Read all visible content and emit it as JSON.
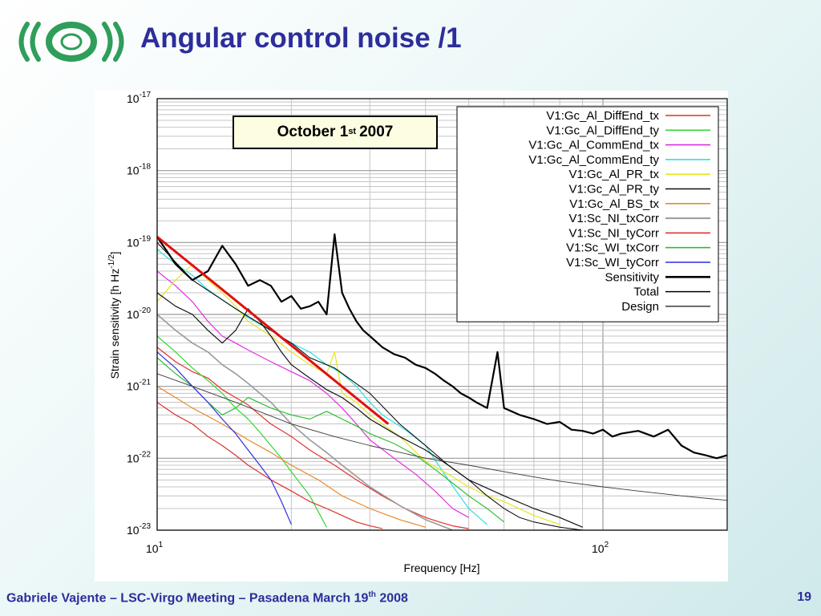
{
  "slide": {
    "title": "Angular control noise /1",
    "logo_icon": "virgo-logo-icon",
    "logo_color": "#2f9e5a",
    "title_color": "#2d2d9b",
    "footer": {
      "text": "Gabriele Vajente – LSC-Virgo Meeting – Pasadena March 19",
      "sup": "th",
      "year": "2008",
      "page": "19"
    }
  },
  "chart_data": {
    "type": "line",
    "xlabel": "Frequency [Hz]",
    "ylabel": "Strain sensitivity [h Hz",
    "ylabel_sup": "-1/2",
    "ylabel_close": "]",
    "xscale": "log",
    "yscale": "log",
    "xlim": [
      10,
      190
    ],
    "ylim": [
      1e-23,
      1e-17
    ],
    "grid": true,
    "legend_position": "top-right",
    "x_ticks": [
      {
        "value": 10,
        "base": "10",
        "exp": "1"
      },
      {
        "value": 100,
        "base": "10",
        "exp": "2"
      }
    ],
    "y_ticks": [
      {
        "value": 1e-17,
        "base": "10",
        "exp": "-17"
      },
      {
        "value": 1e-18,
        "base": "10",
        "exp": "-18"
      },
      {
        "value": 1e-19,
        "base": "10",
        "exp": "-19"
      },
      {
        "value": 1e-20,
        "base": "10",
        "exp": "-20"
      },
      {
        "value": 1e-21,
        "base": "10",
        "exp": "-21"
      },
      {
        "value": 1e-22,
        "base": "10",
        "exp": "-22"
      },
      {
        "value": 1e-23,
        "base": "10",
        "exp": "-23"
      }
    ],
    "annotation": {
      "text": "October 1",
      "sup": "st",
      "tail": "2007"
    },
    "series": [
      {
        "name": "V1:Gc_Al_DiffEnd_tx",
        "color": "#e0312f",
        "width": 1.2,
        "x": [
          10,
          11,
          12,
          13,
          14,
          15,
          16,
          17,
          18,
          20,
          22,
          25,
          28,
          32,
          36,
          40,
          43,
          46,
          50
        ],
        "y": [
          3.5e-21,
          2.2e-21,
          1.6e-21,
          1.3e-21,
          9e-22,
          7e-22,
          5.5e-22,
          4e-22,
          3e-22,
          2e-22,
          1.3e-22,
          8e-23,
          5e-23,
          3e-23,
          2e-23,
          1.5e-23,
          1.3e-23,
          1.15e-23,
          1.05e-23
        ]
      },
      {
        "name": "V1:Gc_Al_DiffEnd_ty",
        "color": "#33d633",
        "width": 1.2,
        "x": [
          10,
          11,
          12,
          13,
          14,
          15,
          16,
          17,
          18,
          19,
          20,
          22,
          24
        ],
        "y": [
          5e-21,
          3e-21,
          1.8e-21,
          1.2e-21,
          8e-22,
          5e-22,
          3.5e-22,
          2.3e-22,
          1.5e-22,
          1e-22,
          6.5e-23,
          3e-23,
          1.1e-23
        ]
      },
      {
        "name": "V1:Gc_Al_CommEnd_tx",
        "color": "#e02fe0",
        "width": 1.2,
        "x": [
          10,
          11,
          12,
          13,
          14,
          15,
          16,
          18,
          20,
          22,
          24,
          26,
          28,
          30,
          34,
          38,
          42,
          46,
          50
        ],
        "y": [
          4e-20,
          2.5e-20,
          1.5e-20,
          8e-21,
          5e-21,
          4e-21,
          3.2e-21,
          2.2e-21,
          1.6e-21,
          1.2e-21,
          8e-22,
          5e-22,
          3e-22,
          1.8e-22,
          1e-22,
          6e-23,
          3.5e-23,
          2e-23,
          1.5e-23
        ]
      },
      {
        "name": "V1:Gc_Al_CommEnd_ty",
        "color": "#2ee0e0",
        "width": 1.2,
        "x": [
          10,
          11,
          12,
          13,
          14,
          15,
          16,
          18,
          20,
          22,
          24,
          26,
          28,
          30,
          32,
          36,
          40,
          45,
          50,
          55
        ],
        "y": [
          8e-20,
          5e-20,
          3.5e-20,
          2.2e-20,
          1.6e-20,
          1.2e-20,
          9e-21,
          6e-21,
          4e-21,
          3e-21,
          2e-21,
          1.5e-21,
          1e-21,
          6e-22,
          4e-22,
          2.5e-22,
          1.5e-22,
          5e-23,
          2e-23,
          1.2e-23
        ]
      },
      {
        "name": "V1:Gc_Al_PR_tx",
        "color": "#e6e61f",
        "width": 1.2,
        "x": [
          10,
          11,
          12,
          13,
          14,
          15,
          16,
          18,
          20,
          22,
          24,
          25,
          26,
          28,
          30,
          35,
          40,
          45,
          50,
          55,
          60,
          70,
          80
        ],
        "y": [
          1.5e-20,
          3e-20,
          5e-20,
          3e-20,
          2e-20,
          1.3e-20,
          8e-21,
          5e-21,
          3e-21,
          2e-21,
          1.5e-21,
          3e-21,
          8e-22,
          6e-22,
          4e-22,
          2e-22,
          9e-23,
          6e-23,
          4e-23,
          3e-23,
          2.5e-23,
          1.6e-23,
          1.2e-23
        ]
      },
      {
        "name": "V1:Gc_Al_PR_ty",
        "color": "#111111",
        "width": 1.2,
        "x": [
          10,
          11,
          12,
          13,
          14,
          15,
          16,
          17,
          18,
          19,
          20,
          22,
          24,
          26,
          28,
          30,
          35,
          40,
          45,
          50,
          60,
          70,
          80,
          90
        ],
        "y": [
          2e-20,
          1.3e-20,
          1e-20,
          6e-21,
          4e-21,
          6e-21,
          1.2e-20,
          8e-21,
          5e-21,
          3e-21,
          2e-21,
          1.3e-21,
          9e-22,
          7e-22,
          5e-22,
          3.5e-22,
          2e-22,
          1.3e-22,
          8e-23,
          5e-23,
          3e-23,
          2e-23,
          1.5e-23,
          1.1e-23
        ]
      },
      {
        "name": "V1:Gc_Al_BS_tx",
        "color": "#e88a2e",
        "width": 1.2,
        "x": [
          10,
          11,
          12,
          14,
          16,
          18,
          20,
          23,
          26,
          30,
          35,
          40
        ],
        "y": [
          1e-21,
          7e-22,
          5e-22,
          3e-22,
          1.8e-22,
          1.2e-22,
          8e-23,
          5e-23,
          3e-23,
          2e-23,
          1.4e-23,
          1.1e-23
        ]
      },
      {
        "name": "V1:Sc_NI_txCorr",
        "color": "#9a9a9a",
        "width": 1.6,
        "x": [
          10,
          11,
          12,
          13,
          14,
          15,
          16,
          17,
          18,
          20,
          22,
          24,
          26,
          30,
          35,
          40,
          46
        ],
        "y": [
          1e-20,
          6e-21,
          4e-21,
          3e-21,
          2e-21,
          1.5e-21,
          1.1e-21,
          8e-22,
          6e-22,
          3e-22,
          1.8e-22,
          1.2e-22,
          8e-23,
          4e-23,
          2.2e-23,
          1.4e-23,
          1e-23
        ]
      },
      {
        "name": "V1:Sc_NI_tyCorr",
        "color": "#d9342e",
        "width": 1.2,
        "x": [
          10,
          11,
          12,
          13,
          14,
          15,
          16,
          18,
          20,
          22,
          24,
          26,
          28,
          30,
          32
        ],
        "y": [
          6e-22,
          4e-22,
          3e-22,
          2e-22,
          1.5e-22,
          1.1e-22,
          8e-23,
          5e-23,
          3.5e-23,
          2.5e-23,
          2e-23,
          1.6e-23,
          1.3e-23,
          1.15e-23,
          1.05e-23
        ]
      },
      {
        "name": "V1:Sc_WI_txCorr",
        "color": "#2fbf2f",
        "width": 1.2,
        "x": [
          10,
          11,
          12,
          13,
          14,
          15,
          16,
          18,
          20,
          22,
          24,
          26,
          28,
          30,
          34,
          38,
          42,
          46,
          50,
          55,
          60
        ],
        "y": [
          2.5e-21,
          1.5e-21,
          1e-21,
          6e-22,
          4e-22,
          5e-22,
          7e-22,
          5e-22,
          4e-22,
          3.5e-22,
          4.5e-22,
          3.5e-22,
          2.8e-22,
          2.2e-22,
          1.6e-22,
          1.1e-22,
          7e-23,
          4.5e-23,
          3e-23,
          2e-23,
          1.3e-23
        ]
      },
      {
        "name": "V1:Sc_WI_tyCorr",
        "color": "#2f2fe0",
        "width": 1.2,
        "x": [
          10,
          11,
          12,
          13,
          14,
          15,
          16,
          17,
          18,
          19,
          20
        ],
        "y": [
          3e-21,
          1.8e-21,
          1e-21,
          6e-22,
          3.5e-22,
          2.2e-22,
          1.3e-22,
          8e-23,
          5e-23,
          2.5e-23,
          1.2e-23
        ]
      },
      {
        "name": "Sensitivity",
        "color": "#000000",
        "width": 2.2,
        "x": [
          10,
          11,
          12,
          13,
          14,
          15,
          16,
          17,
          18,
          19,
          20,
          21,
          22,
          23,
          24,
          25,
          26,
          27,
          28,
          29,
          30,
          32,
          34,
          36,
          38,
          40,
          42,
          44,
          46,
          48,
          50,
          52,
          55,
          58,
          60,
          65,
          70,
          75,
          80,
          85,
          90,
          95,
          100,
          105,
          110,
          120,
          130,
          140,
          150,
          160,
          170,
          180,
          190
        ],
        "y": [
          1.2e-19,
          5e-20,
          3e-20,
          4e-20,
          9e-20,
          5e-20,
          2.5e-20,
          3e-20,
          2.5e-20,
          1.5e-20,
          1.8e-20,
          1.2e-20,
          1.3e-20,
          1.5e-20,
          1e-20,
          1.3e-19,
          2e-20,
          1.2e-20,
          8e-21,
          6e-21,
          5e-21,
          3.5e-21,
          2.8e-21,
          2.5e-21,
          2e-21,
          1.8e-21,
          1.5e-21,
          1.2e-21,
          1e-21,
          8e-22,
          7e-22,
          6e-22,
          5e-22,
          3e-21,
          5e-22,
          4e-22,
          3.5e-22,
          3e-22,
          3.2e-22,
          2.5e-22,
          2.4e-22,
          2.2e-22,
          2.5e-22,
          2e-22,
          2.2e-22,
          2.4e-22,
          2e-22,
          2.5e-22,
          1.5e-22,
          1.2e-22,
          1.1e-22,
          1e-22,
          1.1e-22
        ]
      },
      {
        "name": "Total",
        "color": "#000000",
        "width": 1,
        "x": [
          10,
          12,
          15,
          18,
          20,
          22,
          25,
          30,
          35,
          40,
          45,
          50,
          55,
          60,
          65,
          70,
          80,
          90
        ],
        "y": [
          1e-19,
          3e-20,
          1.2e-20,
          6e-21,
          4e-21,
          2.5e-21,
          1.8e-21,
          8e-22,
          3e-22,
          1.5e-22,
          8e-23,
          5e-23,
          3e-23,
          2e-23,
          1.5e-23,
          1.3e-23,
          1.1e-23,
          1e-23
        ]
      },
      {
        "name": "Design",
        "color": "#3a3a3a",
        "width": 0.9,
        "x": [
          10,
          12,
          15,
          20,
          25,
          30,
          40,
          50,
          60,
          70,
          80,
          100,
          120,
          150,
          190
        ],
        "y": [
          1.5e-21,
          1e-21,
          6e-22,
          3e-22,
          2e-22,
          1.5e-22,
          1e-22,
          8e-23,
          6.5e-23,
          5.5e-23,
          4.8e-23,
          4e-23,
          3.5e-23,
          3e-23,
          2.6e-23
        ]
      }
    ],
    "reference_line": {
      "color": "#e01010",
      "width": 3,
      "x": [
        10,
        33
      ],
      "y": [
        1.2e-19,
        3e-22
      ]
    }
  }
}
